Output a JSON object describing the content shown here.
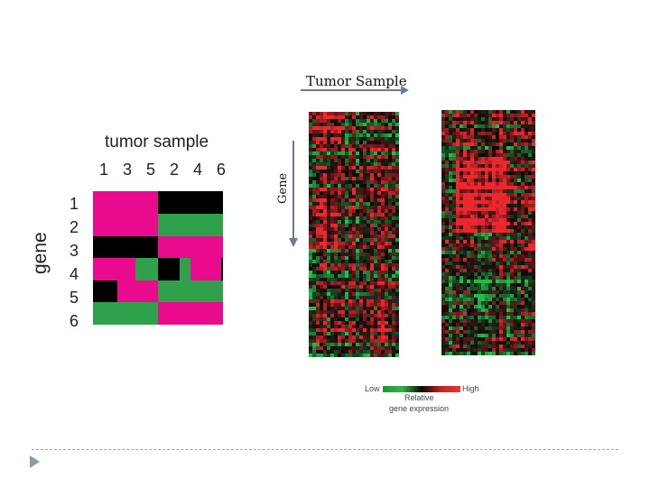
{
  "schematic": {
    "title": "tumor sample",
    "column_labels": [
      "1",
      "3",
      "5",
      "2",
      "4",
      "6"
    ],
    "row_labels": [
      "1",
      "2",
      "3",
      "4",
      "5",
      "6"
    ],
    "axis_label": "gene",
    "colors": {
      "high": "#ea0a8e",
      "low": "#2fa14a",
      "neutral": "#000000"
    }
  },
  "heatmap": {
    "x_label": "Tumor Sample",
    "y_label": "Gene",
    "colors": {
      "low": "#1a9a3a",
      "mid": "#0a0a0a",
      "high": "#e02a2a"
    }
  },
  "legend": {
    "low_label": "Low",
    "high_label": "High",
    "caption_line1": "Relative",
    "caption_line2": "gene expression"
  },
  "footer": {
    "bullet_icon": "triangle-bullet-icon"
  }
}
